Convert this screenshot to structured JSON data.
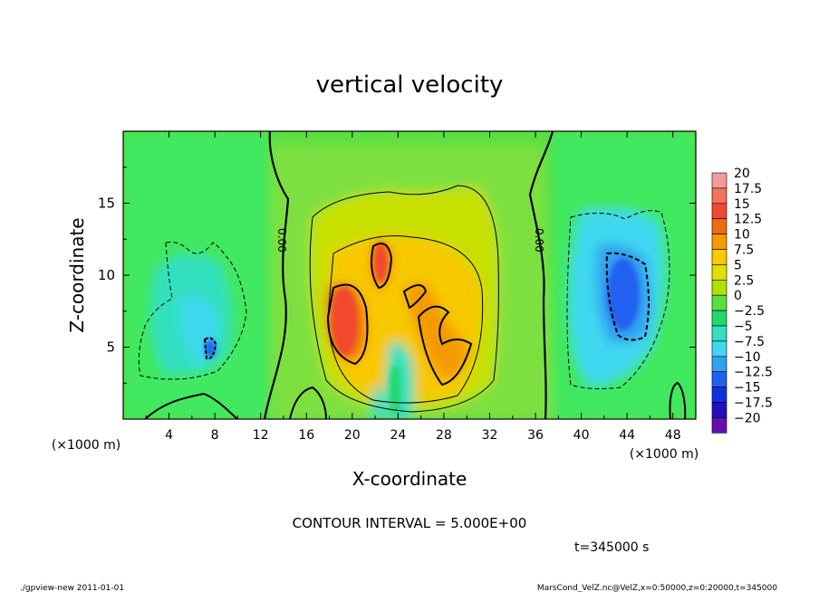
{
  "chart_data": {
    "type": "heatmap",
    "title": "vertical velocity",
    "xlabel": "X-coordinate",
    "ylabel": "Z-coordinate",
    "x_unit": "(×1000 m)",
    "x_unit_right": "(×1000 m)",
    "xlim": [
      0,
      50
    ],
    "ylim": [
      0,
      20
    ],
    "x_ticks": [
      4,
      8,
      12,
      16,
      20,
      24,
      28,
      32,
      36,
      40,
      44,
      48
    ],
    "y_ticks": [
      5,
      10,
      15
    ],
    "colorbar": {
      "levels": [
        "20",
        "17.5",
        "15",
        "12.5",
        "10",
        "7.5",
        "5",
        "2.5",
        "0",
        "−2.5",
        "−5",
        "−7.5",
        "−10",
        "−12.5",
        "−15",
        "−17.5",
        "−20"
      ],
      "colors": [
        "#f59a9a",
        "#f2735f",
        "#f04a2e",
        "#f06a10",
        "#f49a00",
        "#f8c800",
        "#e0e000",
        "#b0e000",
        "#58e040",
        "#20d870",
        "#30e0c0",
        "#40d8f0",
        "#30a0f0",
        "#2060f0",
        "#1030e0",
        "#2010c0",
        "#6010b0"
      ]
    },
    "contour_labels": [
      "0.00",
      "0.00"
    ],
    "contour_interval_text": "CONTOUR INTERVAL = 5.000E+00",
    "time_text": "t=345000 s"
  },
  "footer": {
    "left": "./gpview-new   2011-01-01",
    "right": "MarsCond_VelZ.nc@VelZ,x=0:50000,z=0:20000,t=345000"
  }
}
